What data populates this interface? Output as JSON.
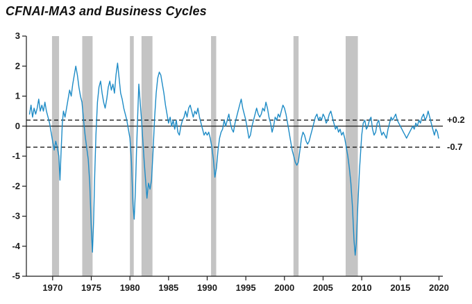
{
  "title": "CFNAI-MA3 and Business Cycles",
  "chart_data": {
    "type": "line",
    "title": "CFNAI-MA3 and Business Cycles",
    "xlabel": "",
    "ylabel": "",
    "xlim": [
      1966.6,
      2020.5
    ],
    "ylim": [
      -5,
      3
    ],
    "x_ticks": [
      1970,
      1975,
      1980,
      1985,
      1990,
      1995,
      2000,
      2005,
      2010,
      2015,
      2020
    ],
    "y_ticks": [
      -5,
      -4,
      -3,
      -2,
      -1,
      0,
      1,
      2,
      3
    ],
    "grid": false,
    "legend": "none",
    "line_color": "#1d8bc6",
    "recession_band_color": "#c4c4c4",
    "axis_color": "#1a1a1a",
    "zero_line_value": 0,
    "thresholds": [
      {
        "value": 0.2,
        "label": "+0.2"
      },
      {
        "value": -0.7,
        "label": "-0.7"
      }
    ],
    "recessions": [
      [
        1969.92,
        1970.83
      ],
      [
        1973.83,
        1975.17
      ],
      [
        1980.0,
        1980.5
      ],
      [
        1981.5,
        1982.92
      ],
      [
        1990.5,
        1991.17
      ],
      [
        2001.17,
        2001.83
      ],
      [
        2007.92,
        2009.5
      ]
    ],
    "series": [
      {
        "name": "CFNAI-MA3",
        "points": [
          [
            1967.0,
            0.4
          ],
          [
            1967.2,
            0.7
          ],
          [
            1967.4,
            0.3
          ],
          [
            1967.6,
            0.6
          ],
          [
            1967.8,
            0.4
          ],
          [
            1968.0,
            0.6
          ],
          [
            1968.2,
            0.9
          ],
          [
            1968.4,
            0.5
          ],
          [
            1968.6,
            0.7
          ],
          [
            1968.8,
            0.5
          ],
          [
            1969.0,
            0.8
          ],
          [
            1969.2,
            0.5
          ],
          [
            1969.4,
            0.3
          ],
          [
            1969.6,
            0.1
          ],
          [
            1969.8,
            -0.2
          ],
          [
            1970.0,
            -0.5
          ],
          [
            1970.2,
            -0.8
          ],
          [
            1970.4,
            -0.5
          ],
          [
            1970.6,
            -0.7
          ],
          [
            1970.8,
            -1.0
          ],
          [
            1970.95,
            -1.8
          ],
          [
            1971.1,
            -0.8
          ],
          [
            1971.25,
            0.1
          ],
          [
            1971.4,
            0.5
          ],
          [
            1971.6,
            0.3
          ],
          [
            1971.8,
            0.6
          ],
          [
            1972.0,
            0.9
          ],
          [
            1972.2,
            1.2
          ],
          [
            1972.4,
            1.0
          ],
          [
            1972.6,
            1.4
          ],
          [
            1972.8,
            1.7
          ],
          [
            1973.0,
            2.0
          ],
          [
            1973.2,
            1.7
          ],
          [
            1973.4,
            1.3
          ],
          [
            1973.6,
            1.0
          ],
          [
            1973.8,
            0.8
          ],
          [
            1974.0,
            0.2
          ],
          [
            1974.2,
            -0.3
          ],
          [
            1974.4,
            -0.7
          ],
          [
            1974.6,
            -1.1
          ],
          [
            1974.8,
            -1.9
          ],
          [
            1975.0,
            -3.4
          ],
          [
            1975.15,
            -4.2
          ],
          [
            1975.3,
            -3.2
          ],
          [
            1975.45,
            -1.6
          ],
          [
            1975.6,
            -0.3
          ],
          [
            1975.8,
            0.8
          ],
          [
            1976.0,
            1.3
          ],
          [
            1976.2,
            1.5
          ],
          [
            1976.4,
            1.1
          ],
          [
            1976.6,
            0.8
          ],
          [
            1976.8,
            0.6
          ],
          [
            1977.0,
            0.9
          ],
          [
            1977.2,
            1.3
          ],
          [
            1977.4,
            1.5
          ],
          [
            1977.6,
            1.2
          ],
          [
            1977.8,
            1.4
          ],
          [
            1978.0,
            1.1
          ],
          [
            1978.2,
            1.7
          ],
          [
            1978.4,
            2.1
          ],
          [
            1978.6,
            1.6
          ],
          [
            1978.8,
            1.1
          ],
          [
            1979.0,
            0.9
          ],
          [
            1979.2,
            0.6
          ],
          [
            1979.4,
            0.4
          ],
          [
            1979.6,
            0.2
          ],
          [
            1979.8,
            -0.1
          ],
          [
            1980.0,
            -0.4
          ],
          [
            1980.2,
            -1.2
          ],
          [
            1980.4,
            -2.6
          ],
          [
            1980.55,
            -3.1
          ],
          [
            1980.7,
            -2.2
          ],
          [
            1980.85,
            -0.9
          ],
          [
            1981.0,
            0.3
          ],
          [
            1981.15,
            1.4
          ],
          [
            1981.3,
            0.9
          ],
          [
            1981.5,
            0.2
          ],
          [
            1981.7,
            -0.6
          ],
          [
            1981.85,
            -1.2
          ],
          [
            1982.0,
            -1.7
          ],
          [
            1982.2,
            -2.4
          ],
          [
            1982.4,
            -1.9
          ],
          [
            1982.6,
            -2.1
          ],
          [
            1982.8,
            -1.8
          ],
          [
            1983.0,
            -0.8
          ],
          [
            1983.2,
            0.3
          ],
          [
            1983.4,
            1.1
          ],
          [
            1983.6,
            1.6
          ],
          [
            1983.8,
            1.8
          ],
          [
            1984.0,
            1.7
          ],
          [
            1984.2,
            1.4
          ],
          [
            1984.4,
            1.1
          ],
          [
            1984.6,
            0.7
          ],
          [
            1984.8,
            0.4
          ],
          [
            1985.0,
            0.1
          ],
          [
            1985.2,
            0.3
          ],
          [
            1985.4,
            0.0
          ],
          [
            1985.6,
            0.2
          ],
          [
            1985.8,
            -0.1
          ],
          [
            1986.0,
            0.2
          ],
          [
            1986.2,
            -0.2
          ],
          [
            1986.4,
            -0.3
          ],
          [
            1986.6,
            0.0
          ],
          [
            1986.8,
            0.2
          ],
          [
            1987.0,
            0.3
          ],
          [
            1987.2,
            0.5
          ],
          [
            1987.4,
            0.3
          ],
          [
            1987.6,
            0.6
          ],
          [
            1987.8,
            0.7
          ],
          [
            1988.0,
            0.5
          ],
          [
            1988.2,
            0.3
          ],
          [
            1988.4,
            0.5
          ],
          [
            1988.6,
            0.4
          ],
          [
            1988.8,
            0.6
          ],
          [
            1989.0,
            0.3
          ],
          [
            1989.2,
            0.1
          ],
          [
            1989.4,
            -0.1
          ],
          [
            1989.6,
            -0.3
          ],
          [
            1989.8,
            -0.2
          ],
          [
            1990.0,
            -0.3
          ],
          [
            1990.2,
            -0.2
          ],
          [
            1990.4,
            -0.4
          ],
          [
            1990.6,
            -0.7
          ],
          [
            1990.8,
            -1.1
          ],
          [
            1991.0,
            -1.7
          ],
          [
            1991.2,
            -1.4
          ],
          [
            1991.4,
            -0.8
          ],
          [
            1991.6,
            -0.4
          ],
          [
            1991.8,
            -0.2
          ],
          [
            1992.0,
            -0.1
          ],
          [
            1992.2,
            0.2
          ],
          [
            1992.4,
            0.0
          ],
          [
            1992.6,
            0.2
          ],
          [
            1992.8,
            0.4
          ],
          [
            1993.0,
            0.1
          ],
          [
            1993.2,
            -0.1
          ],
          [
            1993.4,
            -0.2
          ],
          [
            1993.6,
            0.1
          ],
          [
            1993.8,
            0.3
          ],
          [
            1994.0,
            0.5
          ],
          [
            1994.2,
            0.7
          ],
          [
            1994.4,
            0.9
          ],
          [
            1994.6,
            0.6
          ],
          [
            1994.8,
            0.4
          ],
          [
            1995.0,
            0.2
          ],
          [
            1995.2,
            -0.1
          ],
          [
            1995.4,
            -0.4
          ],
          [
            1995.6,
            -0.3
          ],
          [
            1995.8,
            0.0
          ],
          [
            1996.0,
            0.2
          ],
          [
            1996.2,
            0.4
          ],
          [
            1996.4,
            0.6
          ],
          [
            1996.6,
            0.4
          ],
          [
            1996.8,
            0.3
          ],
          [
            1997.0,
            0.4
          ],
          [
            1997.2,
            0.6
          ],
          [
            1997.4,
            0.5
          ],
          [
            1997.6,
            0.8
          ],
          [
            1997.8,
            0.6
          ],
          [
            1998.0,
            0.3
          ],
          [
            1998.2,
            0.1
          ],
          [
            1998.4,
            -0.2
          ],
          [
            1998.6,
            0.0
          ],
          [
            1998.8,
            0.3
          ],
          [
            1999.0,
            0.2
          ],
          [
            1999.2,
            0.4
          ],
          [
            1999.4,
            0.3
          ],
          [
            1999.6,
            0.5
          ],
          [
            1999.8,
            0.7
          ],
          [
            2000.0,
            0.6
          ],
          [
            2000.2,
            0.4
          ],
          [
            2000.4,
            0.1
          ],
          [
            2000.6,
            -0.2
          ],
          [
            2000.8,
            -0.5
          ],
          [
            2001.0,
            -0.8
          ],
          [
            2001.2,
            -1.0
          ],
          [
            2001.4,
            -1.2
          ],
          [
            2001.6,
            -1.3
          ],
          [
            2001.8,
            -1.2
          ],
          [
            2002.0,
            -0.8
          ],
          [
            2002.2,
            -0.4
          ],
          [
            2002.4,
            -0.2
          ],
          [
            2002.6,
            -0.3
          ],
          [
            2002.8,
            -0.5
          ],
          [
            2003.0,
            -0.6
          ],
          [
            2003.2,
            -0.5
          ],
          [
            2003.4,
            -0.3
          ],
          [
            2003.6,
            -0.1
          ],
          [
            2003.8,
            0.1
          ],
          [
            2004.0,
            0.3
          ],
          [
            2004.2,
            0.4
          ],
          [
            2004.4,
            0.2
          ],
          [
            2004.6,
            0.3
          ],
          [
            2004.8,
            0.2
          ],
          [
            2005.0,
            0.4
          ],
          [
            2005.2,
            0.3
          ],
          [
            2005.4,
            0.1
          ],
          [
            2005.6,
            0.2
          ],
          [
            2005.8,
            0.4
          ],
          [
            2006.0,
            0.5
          ],
          [
            2006.2,
            0.3
          ],
          [
            2006.4,
            0.1
          ],
          [
            2006.6,
            -0.1
          ],
          [
            2006.8,
            0.0
          ],
          [
            2007.0,
            -0.2
          ],
          [
            2007.2,
            -0.1
          ],
          [
            2007.4,
            -0.3
          ],
          [
            2007.6,
            -0.2
          ],
          [
            2007.8,
            -0.4
          ],
          [
            2008.0,
            -0.7
          ],
          [
            2008.2,
            -1.0
          ],
          [
            2008.4,
            -1.4
          ],
          [
            2008.6,
            -1.9
          ],
          [
            2008.8,
            -2.7
          ],
          [
            2009.0,
            -3.8
          ],
          [
            2009.15,
            -4.3
          ],
          [
            2009.3,
            -3.9
          ],
          [
            2009.5,
            -2.6
          ],
          [
            2009.7,
            -1.5
          ],
          [
            2009.9,
            -0.7
          ],
          [
            2010.0,
            -0.3
          ],
          [
            2010.2,
            0.1
          ],
          [
            2010.4,
            0.2
          ],
          [
            2010.6,
            -0.1
          ],
          [
            2010.8,
            0.0
          ],
          [
            2011.0,
            0.2
          ],
          [
            2011.2,
            0.3
          ],
          [
            2011.4,
            -0.1
          ],
          [
            2011.6,
            -0.3
          ],
          [
            2011.8,
            -0.2
          ],
          [
            2012.0,
            0.1
          ],
          [
            2012.2,
            0.2
          ],
          [
            2012.4,
            -0.1
          ],
          [
            2012.6,
            -0.3
          ],
          [
            2012.8,
            -0.2
          ],
          [
            2013.0,
            -0.3
          ],
          [
            2013.2,
            -0.4
          ],
          [
            2013.4,
            -0.1
          ],
          [
            2013.6,
            0.1
          ],
          [
            2013.8,
            0.3
          ],
          [
            2014.0,
            0.2
          ],
          [
            2014.2,
            0.3
          ],
          [
            2014.4,
            0.4
          ],
          [
            2014.6,
            0.2
          ],
          [
            2014.8,
            0.1
          ],
          [
            2015.0,
            0.0
          ],
          [
            2015.2,
            -0.1
          ],
          [
            2015.4,
            -0.2
          ],
          [
            2015.6,
            -0.3
          ],
          [
            2015.8,
            -0.4
          ],
          [
            2016.0,
            -0.3
          ],
          [
            2016.2,
            -0.2
          ],
          [
            2016.4,
            -0.1
          ],
          [
            2016.6,
            0.0
          ],
          [
            2016.8,
            -0.1
          ],
          [
            2017.0,
            0.1
          ],
          [
            2017.2,
            0.0
          ],
          [
            2017.4,
            0.2
          ],
          [
            2017.6,
            0.1
          ],
          [
            2017.8,
            0.3
          ],
          [
            2018.0,
            0.4
          ],
          [
            2018.2,
            0.2
          ],
          [
            2018.4,
            0.3
          ],
          [
            2018.6,
            0.5
          ],
          [
            2018.8,
            0.3
          ],
          [
            2019.0,
            0.1
          ],
          [
            2019.2,
            -0.1
          ],
          [
            2019.4,
            -0.3
          ],
          [
            2019.6,
            -0.1
          ],
          [
            2019.8,
            -0.2
          ],
          [
            2019.95,
            -0.4
          ]
        ]
      }
    ]
  }
}
